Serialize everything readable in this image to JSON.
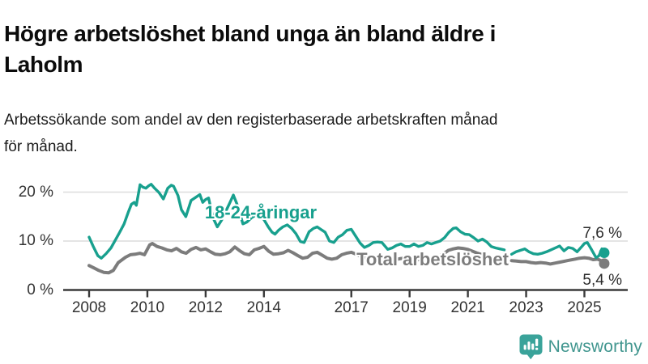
{
  "header": {
    "title_lines": [
      "Högre arbetslöshet bland unga än bland äldre i",
      "Laholm"
    ],
    "subtitle_lines": [
      "Arbetssökande som andel av den registerbaserade arbetskraften månad",
      "för månad."
    ]
  },
  "chart_data": {
    "type": "line",
    "unit": "%",
    "x_axis_label": "",
    "y_axis_label": "",
    "ylim": [
      0,
      22.5
    ],
    "xlim": [
      2007.1,
      2026.4
    ],
    "grid": "horizontal",
    "x_ticks": [
      {
        "year": 2008,
        "label": "2008"
      },
      {
        "year": 2010,
        "label": "2010"
      },
      {
        "year": 2012,
        "label": "2012"
      },
      {
        "year": 2014,
        "label": "2014"
      },
      {
        "year": 2017,
        "label": "2017"
      },
      {
        "year": 2019,
        "label": "2019"
      },
      {
        "year": 2021,
        "label": "2021"
      },
      {
        "year": 2023,
        "label": "2023"
      },
      {
        "year": 2025,
        "label": "2025"
      }
    ],
    "y_ticks": [
      {
        "value": 0,
        "label": "0 %"
      },
      {
        "value": 10,
        "label": "10 %"
      },
      {
        "value": 20,
        "label": "20 %"
      }
    ],
    "series": [
      {
        "name": "Total arbetslöshet",
        "slug": "total",
        "color": "#7c7c7c",
        "end_label": "5,4 %",
        "end_value": 5.4,
        "segments": [
          [
            [
              2008.0,
              5.0
            ],
            [
              2008.17,
              4.5
            ],
            [
              2008.33,
              4.0
            ],
            [
              2008.5,
              3.6
            ],
            [
              2008.67,
              3.5
            ],
            [
              2008.83,
              4.0
            ],
            [
              2009.0,
              5.6
            ],
            [
              2009.25,
              6.7
            ],
            [
              2009.42,
              7.2
            ],
            [
              2009.58,
              7.3
            ],
            [
              2009.75,
              7.5
            ],
            [
              2009.9,
              7.2
            ],
            [
              2010.08,
              9.2
            ],
            [
              2010.17,
              9.5
            ],
            [
              2010.33,
              8.9
            ],
            [
              2010.5,
              8.6
            ],
            [
              2010.67,
              8.2
            ],
            [
              2010.83,
              8.0
            ],
            [
              2011.0,
              8.5
            ],
            [
              2011.17,
              7.8
            ],
            [
              2011.33,
              7.5
            ],
            [
              2011.5,
              8.3
            ],
            [
              2011.67,
              8.7
            ],
            [
              2011.83,
              8.2
            ],
            [
              2012.0,
              8.4
            ],
            [
              2012.17,
              7.8
            ],
            [
              2012.33,
              7.3
            ],
            [
              2012.5,
              7.2
            ],
            [
              2012.67,
              7.4
            ],
            [
              2012.83,
              7.8
            ],
            [
              2013.0,
              8.8
            ],
            [
              2013.17,
              8.0
            ],
            [
              2013.33,
              7.4
            ],
            [
              2013.5,
              7.2
            ],
            [
              2013.67,
              8.2
            ],
            [
              2013.83,
              8.5
            ],
            [
              2014.0,
              8.9
            ],
            [
              2014.17,
              7.9
            ],
            [
              2014.33,
              7.3
            ],
            [
              2014.5,
              7.4
            ],
            [
              2014.67,
              7.6
            ],
            [
              2014.83,
              8.1
            ],
            [
              2015.0,
              7.6
            ],
            [
              2015.17,
              7.0
            ],
            [
              2015.33,
              6.5
            ],
            [
              2015.5,
              6.7
            ],
            [
              2015.67,
              7.5
            ],
            [
              2015.83,
              7.7
            ],
            [
              2016.0,
              7.1
            ],
            [
              2016.17,
              6.5
            ],
            [
              2016.33,
              6.3
            ],
            [
              2016.5,
              6.5
            ],
            [
              2016.67,
              7.2
            ],
            [
              2016.83,
              7.5
            ],
            [
              2017.0,
              7.7
            ],
            [
              2017.17,
              7.3
            ],
            [
              2017.33,
              6.9
            ],
            [
              2017.5,
              6.6
            ],
            [
              2017.67,
              6.7
            ],
            [
              2017.83,
              6.9
            ],
            [
              2018.0,
              6.8
            ],
            [
              2018.17,
              6.5
            ],
            [
              2018.33,
              6.3
            ],
            [
              2018.5,
              6.2
            ],
            [
              2018.67,
              6.4
            ],
            [
              2018.83,
              6.5
            ],
            [
              2019.0,
              6.4
            ],
            [
              2019.17,
              6.3
            ],
            [
              2019.33,
              6.2
            ],
            [
              2019.5,
              6.3
            ],
            [
              2019.67,
              6.5
            ],
            [
              2019.83,
              6.6
            ],
            [
              2020.0,
              6.9
            ],
            [
              2020.17,
              7.4
            ],
            [
              2020.33,
              8.1
            ],
            [
              2020.5,
              8.4
            ],
            [
              2020.67,
              8.6
            ],
            [
              2020.83,
              8.5
            ],
            [
              2021.0,
              8.3
            ],
            [
              2021.17,
              7.9
            ],
            [
              2021.33,
              7.5
            ],
            [
              2021.5,
              7.2
            ],
            [
              2021.67,
              6.9
            ],
            [
              2021.83,
              6.6
            ],
            [
              2022.0,
              6.3
            ],
            [
              2022.15,
              6.2
            ],
            [
              2022.29,
              6.1
            ]
          ],
          [
            [
              2022.5,
              6.0
            ],
            [
              2022.67,
              5.9
            ],
            [
              2022.83,
              5.8
            ],
            [
              2023.0,
              5.8
            ],
            [
              2023.17,
              5.6
            ],
            [
              2023.33,
              5.5
            ],
            [
              2023.5,
              5.6
            ],
            [
              2023.67,
              5.5
            ],
            [
              2023.83,
              5.3
            ],
            [
              2024.0,
              5.5
            ],
            [
              2024.17,
              5.7
            ],
            [
              2024.33,
              5.9
            ],
            [
              2024.5,
              6.1
            ],
            [
              2024.67,
              6.3
            ],
            [
              2024.83,
              6.5
            ],
            [
              2025.0,
              6.6
            ],
            [
              2025.15,
              6.5
            ],
            [
              2025.3,
              6.2
            ],
            [
              2025.45,
              6.3
            ],
            [
              2025.57,
              6.0
            ],
            [
              2025.68,
              5.4
            ]
          ]
        ]
      },
      {
        "name": "18-24-åringar",
        "slug": "youth",
        "color": "#18a08e",
        "end_label": "7,6 %",
        "end_value": 7.6,
        "segments": [
          [
            [
              2008.0,
              10.8
            ],
            [
              2008.15,
              8.8
            ],
            [
              2008.3,
              7.0
            ],
            [
              2008.42,
              6.5
            ],
            [
              2008.58,
              7.4
            ],
            [
              2008.75,
              8.6
            ],
            [
              2008.9,
              10.2
            ],
            [
              2009.05,
              11.8
            ],
            [
              2009.2,
              13.5
            ],
            [
              2009.35,
              16.0
            ],
            [
              2009.45,
              17.5
            ],
            [
              2009.55,
              17.9
            ],
            [
              2009.62,
              17.3
            ],
            [
              2009.75,
              21.5
            ],
            [
              2009.85,
              21.0
            ],
            [
              2009.95,
              20.8
            ],
            [
              2010.05,
              21.3
            ],
            [
              2010.13,
              21.6
            ],
            [
              2010.25,
              20.8
            ],
            [
              2010.4,
              19.9
            ],
            [
              2010.55,
              18.6
            ],
            [
              2010.7,
              20.8
            ],
            [
              2010.82,
              21.4
            ],
            [
              2010.9,
              21.2
            ],
            [
              2011.05,
              19.3
            ],
            [
              2011.17,
              16.4
            ],
            [
              2011.32,
              15.0
            ],
            [
              2011.5,
              18.3
            ],
            [
              2011.65,
              18.9
            ],
            [
              2011.8,
              19.5
            ],
            [
              2011.9,
              17.9
            ],
            [
              2012.0,
              18.5
            ],
            [
              2012.1,
              18.8
            ],
            [
              2012.25,
              14.8
            ],
            [
              2012.4,
              12.9
            ],
            [
              2012.55,
              14.3
            ],
            [
              2012.7,
              16.2
            ],
            [
              2012.83,
              17.8
            ],
            [
              2012.95,
              19.4
            ],
            [
              2013.1,
              17.2
            ],
            [
              2013.28,
              13.5
            ],
            [
              2013.42,
              13.9
            ],
            [
              2013.58,
              14.8
            ],
            [
              2013.75,
              15.4
            ],
            [
              2013.9,
              14.9
            ],
            [
              2014.0,
              14.4
            ],
            [
              2014.15,
              12.9
            ],
            [
              2014.28,
              11.8
            ],
            [
              2014.38,
              11.4
            ],
            [
              2014.5,
              12.2
            ],
            [
              2014.65,
              12.9
            ],
            [
              2014.8,
              13.3
            ],
            [
              2014.95,
              12.6
            ],
            [
              2015.1,
              11.5
            ],
            [
              2015.25,
              9.9
            ],
            [
              2015.38,
              9.7
            ],
            [
              2015.55,
              11.9
            ],
            [
              2015.7,
              12.6
            ],
            [
              2015.83,
              12.9
            ],
            [
              2015.95,
              12.4
            ],
            [
              2016.1,
              11.8
            ],
            [
              2016.25,
              10.0
            ],
            [
              2016.4,
              9.7
            ],
            [
              2016.55,
              10.8
            ],
            [
              2016.7,
              11.3
            ],
            [
              2016.85,
              12.2
            ],
            [
              2017.0,
              12.4
            ],
            [
              2017.15,
              11.0
            ],
            [
              2017.3,
              9.6
            ],
            [
              2017.45,
              8.7
            ],
            [
              2017.6,
              9.1
            ],
            [
              2017.75,
              9.7
            ],
            [
              2017.9,
              9.8
            ],
            [
              2018.05,
              9.7
            ],
            [
              2018.25,
              8.3
            ],
            [
              2018.4,
              8.6
            ],
            [
              2018.55,
              9.1
            ],
            [
              2018.7,
              9.4
            ],
            [
              2018.85,
              8.9
            ],
            [
              2019.0,
              8.9
            ],
            [
              2019.15,
              9.4
            ],
            [
              2019.3,
              8.9
            ],
            [
              2019.45,
              9.1
            ],
            [
              2019.6,
              9.7
            ],
            [
              2019.75,
              9.4
            ],
            [
              2019.9,
              9.7
            ],
            [
              2020.05,
              10.0
            ],
            [
              2020.2,
              10.7
            ],
            [
              2020.35,
              11.8
            ],
            [
              2020.5,
              12.6
            ],
            [
              2020.6,
              12.7
            ],
            [
              2020.75,
              11.9
            ],
            [
              2020.9,
              11.4
            ],
            [
              2021.05,
              11.3
            ],
            [
              2021.2,
              10.7
            ],
            [
              2021.35,
              10.0
            ],
            [
              2021.5,
              10.4
            ],
            [
              2021.65,
              9.8
            ],
            [
              2021.8,
              8.9
            ],
            [
              2021.95,
              8.6
            ],
            [
              2022.1,
              8.4
            ],
            [
              2022.25,
              8.2
            ]
          ],
          [
            [
              2022.5,
              7.3
            ],
            [
              2022.65,
              7.8
            ],
            [
              2022.8,
              8.1
            ],
            [
              2022.95,
              8.4
            ],
            [
              2023.1,
              7.8
            ],
            [
              2023.25,
              7.4
            ],
            [
              2023.4,
              7.3
            ],
            [
              2023.55,
              7.5
            ],
            [
              2023.7,
              7.8
            ],
            [
              2023.85,
              8.2
            ],
            [
              2024.0,
              8.6
            ],
            [
              2024.15,
              9.0
            ],
            [
              2024.3,
              8.0
            ],
            [
              2024.45,
              8.7
            ],
            [
              2024.6,
              8.5
            ],
            [
              2024.75,
              7.8
            ],
            [
              2024.9,
              8.8
            ],
            [
              2025.0,
              9.5
            ],
            [
              2025.1,
              9.7
            ],
            [
              2025.25,
              8.2
            ],
            [
              2025.4,
              6.6
            ],
            [
              2025.5,
              7.0
            ],
            [
              2025.6,
              8.4
            ],
            [
              2025.68,
              7.6
            ]
          ]
        ]
      }
    ]
  },
  "logo": {
    "text": "Newsworthy",
    "icon": "bar-chart-speech-bubble-icon",
    "brand_color": "#3aa39a"
  }
}
